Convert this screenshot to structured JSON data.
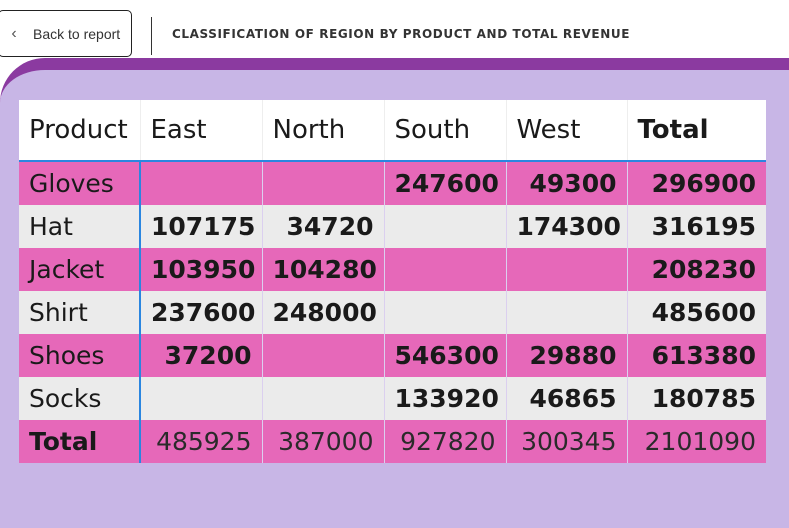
{
  "header": {
    "back_label": "Back to report",
    "back_icon": "chevron-left-icon",
    "title": "CLASSIFICATION OF REGION BY PRODUCT AND TOTAL REVENUE"
  },
  "colors": {
    "accent_purple": "#8b3aa0",
    "canvas_lavender": "#c8b6e6",
    "row_pink": "#e668b9",
    "row_grey": "#ebebeb",
    "divider_blue": "#2a86e0"
  },
  "table": {
    "columns": [
      "Product",
      "East",
      "North",
      "South",
      "West",
      "Total"
    ],
    "rows": [
      {
        "product": "Gloves",
        "east": "",
        "north": "",
        "south": "247600",
        "west": "49300",
        "total": "296900"
      },
      {
        "product": "Hat",
        "east": "107175",
        "north": "34720",
        "south": "",
        "west": "174300",
        "total": "316195"
      },
      {
        "product": "Jacket",
        "east": "103950",
        "north": "104280",
        "south": "",
        "west": "",
        "total": "208230"
      },
      {
        "product": "Shirt",
        "east": "237600",
        "north": "248000",
        "south": "",
        "west": "",
        "total": "485600"
      },
      {
        "product": "Shoes",
        "east": "37200",
        "north": "",
        "south": "546300",
        "west": "29880",
        "total": "613380"
      },
      {
        "product": "Socks",
        "east": "",
        "north": "",
        "south": "133920",
        "west": "46865",
        "total": "180785"
      }
    ],
    "total_row": {
      "label": "Total",
      "east": "485925",
      "north": "387000",
      "south": "927820",
      "west": "300345",
      "total": "2101090"
    }
  }
}
